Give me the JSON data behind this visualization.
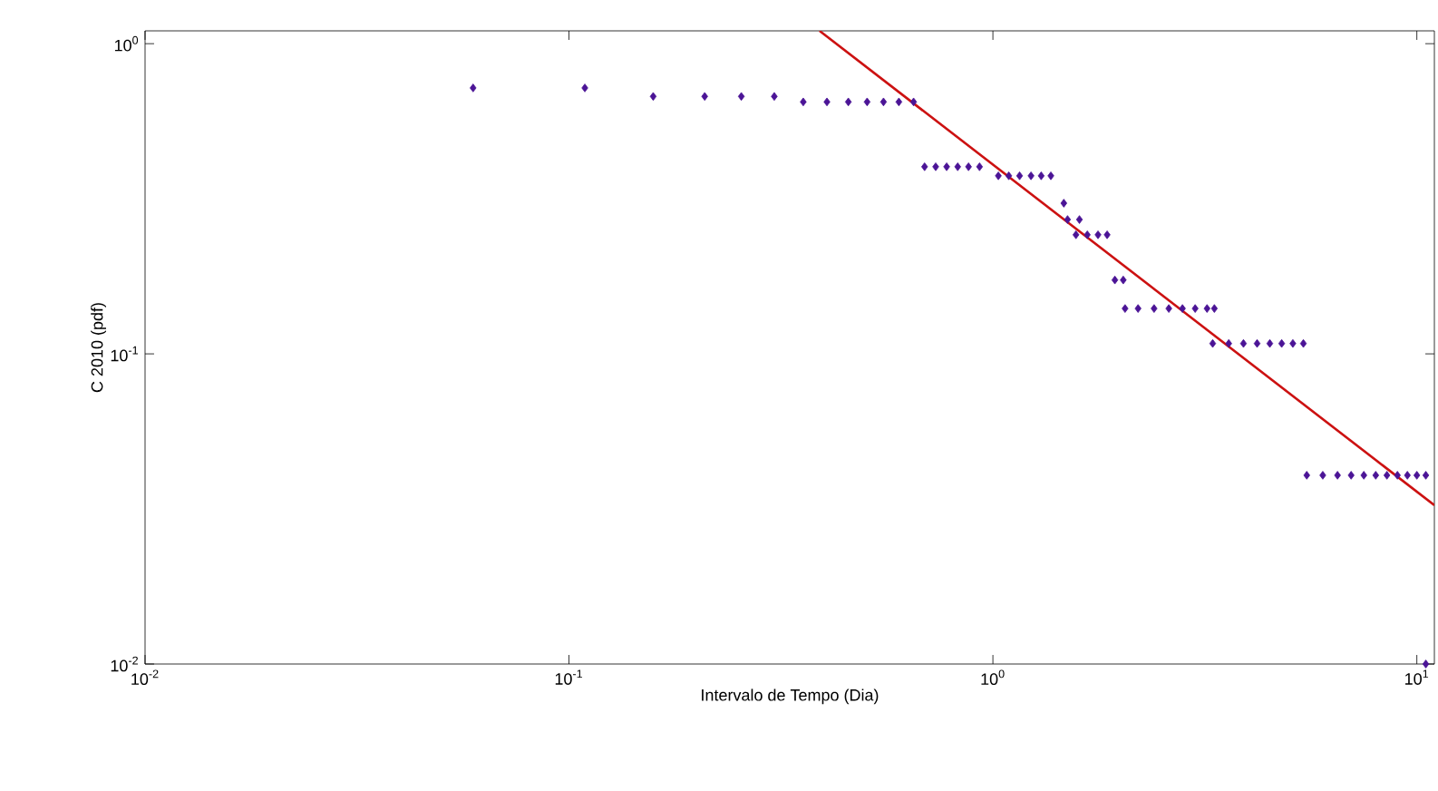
{
  "chart_data": {
    "type": "scatter",
    "xlabel": "Intervalo de Tempo (Dia)",
    "ylabel": "C 2010 (pdf)",
    "log": "xy",
    "xlim": [
      0.01,
      11
    ],
    "ylim": [
      0.01,
      1.1
    ],
    "xticks": [
      {
        "value": 0.01,
        "label": "10$^{-2}$"
      },
      {
        "value": 0.1,
        "label": "10$^{-1}$"
      },
      {
        "value": 1,
        "label": "10$^{0}$"
      },
      {
        "value": 10,
        "label": "10$^{1}$"
      }
    ],
    "yticks": [
      {
        "value": 0.01,
        "label": "10$^{-2}$"
      },
      {
        "value": 0.1,
        "label": "10$^{-1}$"
      },
      {
        "value": 1,
        "label": "10$^{0}$"
      }
    ],
    "series": [
      {
        "marker": "diamond",
        "color": "#4b1496",
        "x": [
          0.0594,
          0.109,
          0.158,
          0.209,
          0.255,
          0.305,
          0.357,
          0.406,
          0.456,
          0.505,
          0.552,
          0.6,
          0.65,
          0.69,
          0.733,
          0.778,
          0.826,
          0.876,
          0.93,
          1.03,
          1.09,
          1.156,
          1.23,
          1.3,
          1.37,
          1.47,
          1.5,
          1.6,
          1.57,
          1.67,
          1.77,
          1.86,
          1.94,
          2.03,
          2.05,
          2.2,
          2.4,
          2.6,
          2.8,
          3.0,
          3.2,
          3.33,
          3.3,
          3.6,
          3.9,
          4.2,
          4.5,
          4.8,
          5.1,
          5.4,
          5.5,
          6.0,
          6.5,
          7.0,
          7.5,
          8.0,
          8.5,
          9.0,
          9.5,
          10.0,
          10.5,
          10.5
        ],
        "values": [
          0.72,
          0.72,
          0.676,
          0.676,
          0.676,
          0.676,
          0.649,
          0.649,
          0.649,
          0.649,
          0.649,
          0.649,
          0.649,
          0.401,
          0.401,
          0.401,
          0.401,
          0.401,
          0.401,
          0.375,
          0.375,
          0.375,
          0.375,
          0.375,
          0.375,
          0.306,
          0.271,
          0.271,
          0.242,
          0.242,
          0.242,
          0.242,
          0.173,
          0.173,
          0.14,
          0.14,
          0.14,
          0.14,
          0.14,
          0.14,
          0.14,
          0.14,
          0.108,
          0.108,
          0.108,
          0.108,
          0.108,
          0.108,
          0.108,
          0.108,
          0.0406,
          0.0406,
          0.0406,
          0.0406,
          0.0406,
          0.0406,
          0.0406,
          0.0406,
          0.0406,
          0.0406,
          0.0406,
          0.01
        ]
      },
      {
        "type": "line",
        "marker": "none",
        "color": "#cc1111",
        "x": [
          0.39,
          11
        ],
        "values": [
          1.1,
          0.0325
        ]
      }
    ]
  }
}
